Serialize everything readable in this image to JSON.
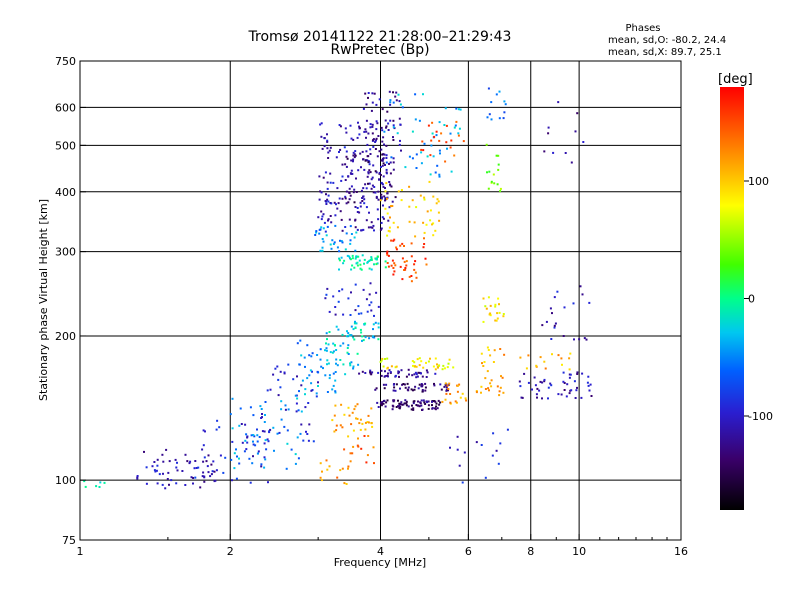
{
  "chart_data": {
    "type": "scatter",
    "title": "Tromsø 20141122 21:28:00–21:29:43",
    "subtitle": "RwPretec (Bp)",
    "stats": {
      "heading": "Phases",
      "line_o": "mean, sd,O: -80.2, 24.4",
      "line_x": "mean, sd,X:  89.7, 25.1"
    },
    "xlabel": "Frequency [MHz]",
    "ylabel": "Stationary phase Virtual Height [km]",
    "x_scale": "log",
    "y_scale": "log",
    "xlim": [
      1,
      16
    ],
    "ylim": [
      75,
      750
    ],
    "x_ticks": [
      1,
      2,
      4,
      6,
      8,
      10,
      16
    ],
    "x_tick_labels": [
      "1",
      "2",
      "4",
      "6",
      "8",
      "10",
      "16"
    ],
    "y_ticks": [
      75,
      100,
      200,
      300,
      400,
      500,
      600,
      750
    ],
    "y_tick_labels": [
      "75",
      "100",
      "200",
      "300",
      "400",
      "500",
      "600",
      "750"
    ],
    "x_gridlines": [
      2,
      4,
      6,
      8,
      10
    ],
    "y_gridlines": [
      100,
      200,
      300,
      400,
      500,
      600
    ],
    "colorbar": {
      "label": "[deg]",
      "range": [
        -180,
        180
      ],
      "tick_values": [
        100,
        0,
        -100
      ],
      "tick_labels": [
        "100",
        "0",
        "-100"
      ]
    },
    "clusters": [
      {
        "x": [
          1.0,
          1.12
        ],
        "y": [
          96,
          100
        ],
        "phase": -15,
        "n": 6
      },
      {
        "x": [
          1.3,
          1.9
        ],
        "y": [
          96,
          116
        ],
        "phase": -110,
        "n": 60
      },
      {
        "x": [
          1.7,
          2.4
        ],
        "y": [
          98,
          135
        ],
        "phase": -95,
        "n": 45
      },
      {
        "x": [
          2.0,
          2.8
        ],
        "y": [
          105,
          150
        ],
        "phase": -45,
        "n": 55
      },
      {
        "x": [
          2.3,
          3.0
        ],
        "y": [
          120,
          175
        ],
        "phase": -100,
        "n": 40
      },
      {
        "x": [
          2.7,
          3.3
        ],
        "y": [
          150,
          200
        ],
        "phase": -45,
        "n": 45
      },
      {
        "x": [
          3.1,
          3.7
        ],
        "y": [
          165,
          215
        ],
        "phase": -25,
        "n": 40
      },
      {
        "x": [
          3.0,
          3.5
        ],
        "y": [
          98,
          110
        ],
        "phase": 120,
        "n": 14
      },
      {
        "x": [
          3.3,
          3.9
        ],
        "y": [
          105,
          125
        ],
        "phase": 140,
        "n": 14
      },
      {
        "x": [
          3.2,
          3.9
        ],
        "y": [
          122,
          145
        ],
        "phase": 115,
        "n": 35
      },
      {
        "x": [
          3.4,
          4.0
        ],
        "y": [
          190,
          215
        ],
        "phase": -25,
        "n": 30
      },
      {
        "x": [
          3.1,
          4.0
        ],
        "y": [
          220,
          260
        ],
        "phase": -95,
        "n": 30
      },
      {
        "x": [
          2.95,
          3.6
        ],
        "y": [
          300,
          340
        ],
        "phase": -45,
        "n": 35
      },
      {
        "x": [
          3.3,
          4.1
        ],
        "y": [
          275,
          295
        ],
        "phase": -10,
        "n": 50
      },
      {
        "x": [
          3.0,
          4.2
        ],
        "y": [
          330,
          560
        ],
        "phase": -110,
        "n": 200
      },
      {
        "x": [
          3.4,
          4.3
        ],
        "y": [
          380,
          480
        ],
        "phase": -130,
        "n": 70
      },
      {
        "x": [
          3.7,
          4.4
        ],
        "y": [
          470,
          650
        ],
        "phase": -120,
        "n": 50
      },
      {
        "x": [
          3.9,
          5.3
        ],
        "y": [
          140,
          147
        ],
        "phase": -135,
        "n": 80
      },
      {
        "x": [
          3.9,
          5.5
        ],
        "y": [
          153,
          159
        ],
        "phase": -130,
        "n": 50
      },
      {
        "x": [
          3.6,
          5.2
        ],
        "y": [
          164,
          170
        ],
        "phase": -120,
        "n": 45
      },
      {
        "x": [
          4.0,
          5.6
        ],
        "y": [
          170,
          180
        ],
        "phase": 85,
        "n": 40
      },
      {
        "x": [
          5.3,
          6.0
        ],
        "y": [
          143,
          160
        ],
        "phase": 115,
        "n": 20
      },
      {
        "x": [
          4.1,
          5.0
        ],
        "y": [
          260,
          320
        ],
        "phase": 150,
        "n": 45
      },
      {
        "x": [
          4.0,
          5.3
        ],
        "y": [
          320,
          420
        ],
        "phase": 95,
        "n": 45
      },
      {
        "x": [
          4.0,
          5.8
        ],
        "y": [
          430,
          640
        ],
        "phase": -40,
        "n": 50
      },
      {
        "x": [
          4.8,
          5.9
        ],
        "y": [
          460,
          560
        ],
        "phase": 150,
        "n": 20
      },
      {
        "x": [
          6.2,
          7.1
        ],
        "y": [
          150,
          190
        ],
        "phase": 110,
        "n": 30
      },
      {
        "x": [
          6.4,
          7.1
        ],
        "y": [
          210,
          245
        ],
        "phase": 90,
        "n": 20
      },
      {
        "x": [
          6.5,
          7.0
        ],
        "y": [
          390,
          520
        ],
        "phase": 45,
        "n": 15
      },
      {
        "x": [
          6.5,
          7.4
        ],
        "y": [
          560,
          660
        ],
        "phase": -60,
        "n": 12
      },
      {
        "x": [
          7.6,
          10.6
        ],
        "y": [
          148,
          168
        ],
        "phase": -110,
        "n": 50
      },
      {
        "x": [
          7.6,
          9.8
        ],
        "y": [
          170,
          185
        ],
        "phase": 110,
        "n": 15
      },
      {
        "x": [
          8.3,
          10.5
        ],
        "y": [
          195,
          270
        ],
        "phase": -110,
        "n": 20
      },
      {
        "x": [
          8.5,
          10.2
        ],
        "y": [
          450,
          640
        ],
        "phase": -120,
        "n": 10
      },
      {
        "x": [
          5.5,
          7.2
        ],
        "y": [
          95,
          130
        ],
        "phase": -100,
        "n": 15
      }
    ]
  }
}
